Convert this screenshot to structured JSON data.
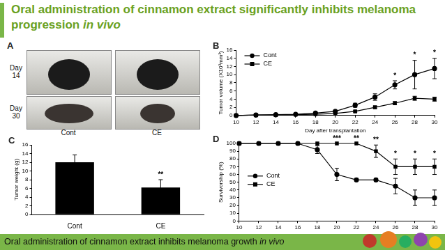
{
  "slide": {
    "title": {
      "text": "Oral administration of cinnamon extract significantly inhibits melanoma progression",
      "italic": "in vivo"
    },
    "footer": {
      "text": "Oral administration of cinnamon extract inhibits melanoma growth",
      "italic": "in vivo"
    }
  },
  "photo_panel": {
    "panel": "A",
    "rows": [
      "Day 14",
      "Day 30"
    ],
    "columns": [
      "Cont",
      "CE"
    ]
  },
  "chart_data": [
    {
      "panel": "B",
      "type": "line",
      "x_label": "Day after transplantation",
      "y_label": "Tumor volume (X10³mm³)",
      "x": [
        10,
        12,
        14,
        16,
        18,
        20,
        22,
        24,
        26,
        28,
        30
      ],
      "series": [
        {
          "name": "Cont",
          "color": "#000000",
          "marker": "circle",
          "values": [
            0,
            0.1,
            0.2,
            0.3,
            0.6,
            1.0,
            2.5,
            4.5,
            7.5,
            10,
            11.5
          ],
          "errors": [
            0,
            0,
            0,
            0,
            0.1,
            0.2,
            0.5,
            0.8,
            1,
            3.5,
            2.5
          ]
        },
        {
          "name": "CE",
          "color": "#000000",
          "marker": "square",
          "values": [
            0,
            0.1,
            0.1,
            0.2,
            0.3,
            0.5,
            1.0,
            2.0,
            3.0,
            4.2,
            4.0
          ],
          "errors": [
            0,
            0,
            0,
            0,
            0,
            0.1,
            0.2,
            0.3,
            0.4,
            0.5,
            0.5
          ]
        }
      ],
      "xlim": [
        10,
        30
      ],
      "xticks": [
        10,
        12,
        14,
        16,
        18,
        20,
        22,
        24,
        26,
        28,
        30
      ],
      "ylim": [
        0,
        16
      ],
      "yticks": [
        0,
        2,
        4,
        6,
        8,
        10,
        12,
        14,
        16
      ],
      "grid": false,
      "legend": "top-left",
      "annotations": [
        {
          "x": 26,
          "text": "*"
        },
        {
          "x": 28,
          "text": "*"
        },
        {
          "x": 30,
          "text": "*"
        }
      ]
    },
    {
      "panel": "C",
      "type": "bar",
      "y_label": "Tumor weight (g)",
      "categories": [
        "Cont",
        "CE"
      ],
      "values": [
        12,
        6.2
      ],
      "errors": [
        1.7,
        1.8
      ],
      "color": "#000000",
      "ylim": [
        0,
        16
      ],
      "yticks": [
        0,
        2,
        4,
        6,
        8,
        10,
        12,
        14,
        16
      ],
      "grid": false,
      "annotations": [
        {
          "x": "CE",
          "text": "**"
        }
      ]
    },
    {
      "panel": "D",
      "type": "line",
      "y_label": "Survivorship (%)",
      "x": [
        10,
        12,
        14,
        16,
        18,
        20,
        22,
        24,
        26,
        28,
        30
      ],
      "series": [
        {
          "name": "Cont",
          "color": "#000000",
          "marker": "circle",
          "values": [
            100,
            100,
            100,
            100,
            92,
            60,
            53,
            53,
            45,
            30,
            30
          ],
          "errors": [
            0,
            0,
            0,
            0,
            5,
            8,
            2,
            2,
            10,
            10,
            10
          ]
        },
        {
          "name": "CE",
          "color": "#000000",
          "marker": "square",
          "values": [
            100,
            100,
            100,
            100,
            100,
            100,
            100,
            90,
            70,
            70,
            70
          ],
          "errors": [
            0,
            0,
            0,
            0,
            0,
            0,
            0,
            8,
            10,
            10,
            10
          ]
        }
      ],
      "xlim": [
        10,
        30
      ],
      "xticks": [
        10,
        12,
        14,
        16,
        18,
        20,
        22,
        24,
        26,
        28,
        30
      ],
      "ylim": [
        0,
        100
      ],
      "yticks": [
        0,
        10,
        20,
        30,
        40,
        50,
        60,
        70,
        80,
        90,
        100
      ],
      "grid": false,
      "legend": "left",
      "annotations": [
        {
          "x": 20,
          "text": "***"
        },
        {
          "x": 22,
          "text": "**"
        },
        {
          "x": 24,
          "text": "**"
        },
        {
          "x": 26,
          "text": "*"
        },
        {
          "x": 28,
          "text": "*"
        },
        {
          "x": 30,
          "text": "*"
        }
      ]
    }
  ]
}
